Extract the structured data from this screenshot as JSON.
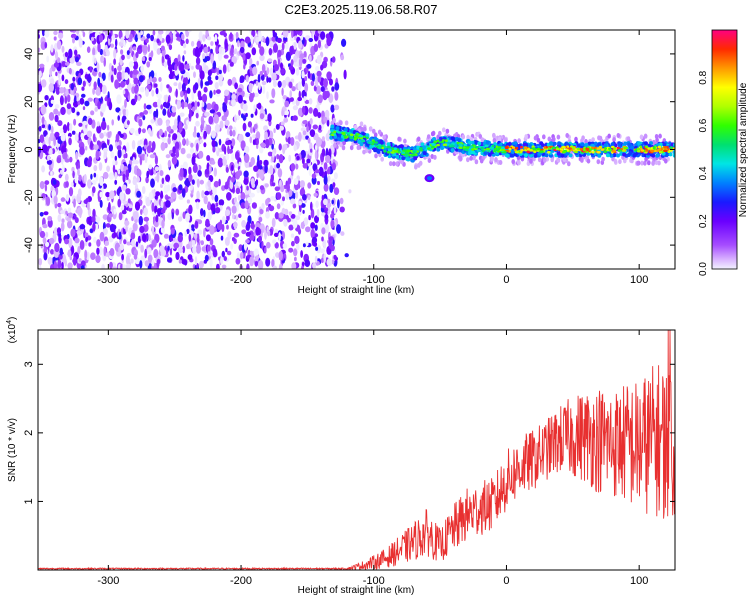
{
  "title": "C2E3.2025.119.06.58.R07",
  "chart_data": [
    {
      "type": "heatmap",
      "title": "",
      "xlabel": "Height of straight line (km)",
      "ylabel": "Frequency (Hz)",
      "xlim": [
        -353,
        127
      ],
      "ylim": [
        -50,
        50
      ],
      "x_ticks": [
        -300,
        -200,
        -100,
        0,
        100
      ],
      "y_ticks": [
        -40,
        -20,
        0,
        20,
        40
      ],
      "colorbar": {
        "label": "Normalized spectral amplitude",
        "range": [
          0.0,
          1.0
        ],
        "ticks": [
          "0.0",
          "0.2",
          "0.4",
          "0.6",
          "0.8"
        ],
        "tick_values": [
          0.0,
          0.2,
          0.4,
          0.6,
          0.8
        ]
      },
      "regions": [
        {
          "name": "broadband-noise",
          "x_range": [
            -353,
            -128
          ],
          "freq_range": [
            -50,
            50
          ],
          "amplitude": [
            0.0,
            0.15
          ]
        },
        {
          "name": "signal-band",
          "x_range": [
            -132,
            127
          ],
          "freq_center": [
            7,
            5,
            0,
            -2,
            3,
            1,
            0,
            0,
            0
          ],
          "freq_center_x": [
            -130,
            -110,
            -90,
            -70,
            -50,
            -30,
            0,
            60,
            127
          ],
          "half_width_hz": 3,
          "amplitude": [
            0.3,
            0.95
          ]
        },
        {
          "name": "isolated-blob",
          "x": -58,
          "freq": -12,
          "amplitude": 0.35
        }
      ]
    },
    {
      "type": "line",
      "title": "",
      "xlabel": "Height of straight line (km)",
      "ylabel": "SNR (10 * v/v)",
      "y_scale_label": "(x10",
      "y_scale_exponent": "4",
      "xlim": [
        -353,
        127
      ],
      "ylim": [
        0,
        3.5
      ],
      "x_ticks": [
        -300,
        -200,
        -100,
        0,
        100
      ],
      "y_ticks": [
        1,
        2,
        3
      ],
      "series": [
        {
          "name": "SNR",
          "color": "#e83030",
          "x": [
            -353,
            -120,
            -105,
            -90,
            -75,
            -60,
            -50,
            -40,
            -30,
            -20,
            -10,
            0,
            10,
            20,
            30,
            40,
            50,
            60,
            70,
            80,
            90,
            100,
            110,
            120,
            127
          ],
          "mean": [
            0.02,
            0.02,
            0.08,
            0.18,
            0.35,
            0.55,
            0.35,
            0.6,
            0.8,
            0.9,
            0.95,
            1.3,
            1.5,
            1.6,
            1.75,
            1.9,
            1.95,
            1.95,
            1.9,
            1.85,
            1.85,
            1.8,
            1.9,
            1.9,
            1.9
          ],
          "spread": [
            0.01,
            0.01,
            0.08,
            0.15,
            0.25,
            0.35,
            0.25,
            0.35,
            0.4,
            0.4,
            0.4,
            0.45,
            0.45,
            0.45,
            0.45,
            0.5,
            0.6,
            0.7,
            0.8,
            0.8,
            0.9,
            1.0,
            1.1,
            1.2,
            1.2
          ],
          "peak": [
            127,
            3.5
          ]
        }
      ]
    }
  ]
}
